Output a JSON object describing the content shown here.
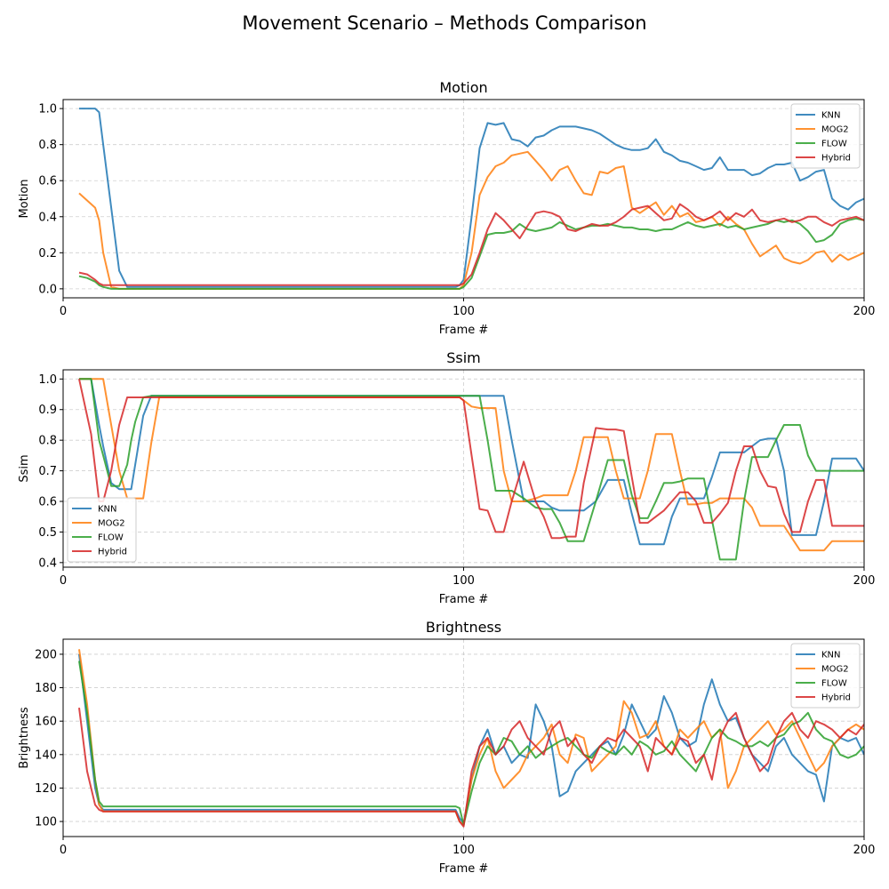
{
  "title": "Movement Scenario – Methods Comparison",
  "colors": {
    "KNN": "#1f77b4",
    "MOG2": "#ff7f0e",
    "FLOW": "#2ca02c",
    "Hybrid": "#d62728"
  },
  "chart_data": [
    {
      "type": "line",
      "title": "Motion",
      "xlabel": "Frame #",
      "ylabel": "Motion",
      "xlim": [
        0,
        200
      ],
      "ylim": [
        -0.05,
        1.05
      ],
      "xticks": [
        "0",
        "100",
        "200"
      ],
      "yticks": [
        "0.0",
        "0.2",
        "0.4",
        "0.6",
        "0.8",
        "1.0"
      ],
      "grid": true,
      "legend": "upper right",
      "x": [
        4,
        6,
        8,
        9,
        10,
        12,
        14,
        16,
        20,
        30,
        40,
        50,
        60,
        70,
        80,
        90,
        96,
        98,
        99,
        100,
        102,
        104,
        106,
        108,
        110,
        112,
        114,
        116,
        118,
        120,
        122,
        124,
        126,
        128,
        130,
        132,
        134,
        136,
        138,
        140,
        142,
        144,
        146,
        148,
        150,
        152,
        154,
        156,
        158,
        160,
        162,
        164,
        166,
        168,
        170,
        172,
        174,
        176,
        178,
        180,
        182,
        184,
        186,
        188,
        190,
        192,
        194,
        196,
        198,
        200
      ],
      "series": [
        {
          "name": "KNN",
          "values": [
            1.0,
            1.0,
            1.0,
            0.98,
            0.8,
            0.45,
            0.1,
            0.01,
            0.01,
            0.01,
            0.01,
            0.01,
            0.01,
            0.01,
            0.01,
            0.01,
            0.01,
            0.01,
            0.02,
            0.05,
            0.4,
            0.78,
            0.92,
            0.91,
            0.92,
            0.83,
            0.82,
            0.79,
            0.84,
            0.85,
            0.88,
            0.9,
            0.9,
            0.9,
            0.89,
            0.88,
            0.86,
            0.83,
            0.8,
            0.78,
            0.77,
            0.77,
            0.78,
            0.83,
            0.76,
            0.74,
            0.71,
            0.7,
            0.68,
            0.66,
            0.67,
            0.73,
            0.66,
            0.66,
            0.66,
            0.63,
            0.64,
            0.67,
            0.69,
            0.69,
            0.7,
            0.6,
            0.62,
            0.65,
            0.66,
            0.5,
            0.46,
            0.44,
            0.48,
            0.5
          ]
        },
        {
          "name": "MOG2",
          "values": [
            0.53,
            0.49,
            0.45,
            0.38,
            0.2,
            0.01,
            0.0,
            0.0,
            0.0,
            0.0,
            0.0,
            0.0,
            0.0,
            0.0,
            0.0,
            0.0,
            0.0,
            0.0,
            0.0,
            0.02,
            0.2,
            0.52,
            0.62,
            0.68,
            0.7,
            0.74,
            0.75,
            0.76,
            0.71,
            0.66,
            0.6,
            0.66,
            0.68,
            0.6,
            0.53,
            0.52,
            0.65,
            0.64,
            0.67,
            0.68,
            0.45,
            0.42,
            0.45,
            0.48,
            0.41,
            0.46,
            0.4,
            0.42,
            0.37,
            0.38,
            0.4,
            0.35,
            0.4,
            0.36,
            0.33,
            0.25,
            0.18,
            0.21,
            0.24,
            0.17,
            0.15,
            0.14,
            0.16,
            0.2,
            0.21,
            0.15,
            0.19,
            0.16,
            0.18,
            0.2
          ]
        },
        {
          "name": "FLOW",
          "values": [
            0.07,
            0.06,
            0.04,
            0.02,
            0.01,
            0.0,
            0.0,
            0.0,
            0.0,
            0.0,
            0.0,
            0.0,
            0.0,
            0.0,
            0.0,
            0.0,
            0.0,
            0.0,
            0.0,
            0.01,
            0.06,
            0.18,
            0.3,
            0.31,
            0.31,
            0.32,
            0.36,
            0.33,
            0.32,
            0.33,
            0.34,
            0.37,
            0.35,
            0.33,
            0.34,
            0.35,
            0.35,
            0.36,
            0.35,
            0.34,
            0.34,
            0.33,
            0.33,
            0.32,
            0.33,
            0.33,
            0.35,
            0.37,
            0.35,
            0.34,
            0.35,
            0.36,
            0.34,
            0.35,
            0.33,
            0.34,
            0.35,
            0.36,
            0.38,
            0.37,
            0.38,
            0.36,
            0.32,
            0.26,
            0.27,
            0.3,
            0.36,
            0.38,
            0.39,
            0.38
          ]
        },
        {
          "name": "Hybrid",
          "values": [
            0.09,
            0.08,
            0.05,
            0.03,
            0.02,
            0.02,
            0.02,
            0.02,
            0.02,
            0.02,
            0.02,
            0.02,
            0.02,
            0.02,
            0.02,
            0.02,
            0.02,
            0.02,
            0.02,
            0.03,
            0.08,
            0.2,
            0.33,
            0.42,
            0.38,
            0.33,
            0.28,
            0.35,
            0.42,
            0.43,
            0.42,
            0.4,
            0.33,
            0.32,
            0.34,
            0.36,
            0.35,
            0.35,
            0.37,
            0.4,
            0.44,
            0.45,
            0.46,
            0.42,
            0.38,
            0.39,
            0.47,
            0.44,
            0.4,
            0.38,
            0.4,
            0.43,
            0.38,
            0.42,
            0.4,
            0.44,
            0.38,
            0.37,
            0.38,
            0.39,
            0.37,
            0.38,
            0.4,
            0.4,
            0.37,
            0.35,
            0.38,
            0.39,
            0.4,
            0.38
          ]
        }
      ]
    },
    {
      "type": "line",
      "title": "Ssim",
      "xlabel": "Frame #",
      "ylabel": "Ssim",
      "xlim": [
        0,
        200
      ],
      "ylim": [
        0.385,
        1.03
      ],
      "xticks": [
        "0",
        "100",
        "200"
      ],
      "yticks": [
        "0.4",
        "0.5",
        "0.6",
        "0.7",
        "0.8",
        "0.9",
        "1.0"
      ],
      "grid": true,
      "legend": "lower left",
      "x": [
        4,
        7,
        9,
        10,
        12,
        14,
        16,
        17,
        18,
        20,
        22,
        24,
        26,
        30,
        40,
        50,
        60,
        70,
        80,
        90,
        99,
        100,
        102,
        104,
        106,
        108,
        110,
        112,
        115,
        118,
        120,
        122,
        124,
        126,
        128,
        130,
        133,
        136,
        138,
        140,
        142,
        144,
        146,
        148,
        150,
        152,
        154,
        156,
        158,
        160,
        162,
        164,
        166,
        168,
        170,
        172,
        174,
        176,
        178,
        180,
        182,
        184,
        186,
        188,
        190,
        192,
        194,
        196,
        198,
        200
      ],
      "series": [
        {
          "name": "KNN",
          "values": [
            1.0,
            1.0,
            0.85,
            0.78,
            0.66,
            0.64,
            0.64,
            0.64,
            0.72,
            0.88,
            0.945,
            0.945,
            0.945,
            0.945,
            0.945,
            0.945,
            0.945,
            0.945,
            0.945,
            0.945,
            0.945,
            0.945,
            0.945,
            0.945,
            0.945,
            0.945,
            0.945,
            0.8,
            0.6,
            0.6,
            0.6,
            0.58,
            0.57,
            0.57,
            0.57,
            0.57,
            0.6,
            0.67,
            0.67,
            0.67,
            0.56,
            0.46,
            0.46,
            0.46,
            0.46,
            0.55,
            0.61,
            0.61,
            0.61,
            0.61,
            0.68,
            0.76,
            0.76,
            0.76,
            0.76,
            0.78,
            0.8,
            0.805,
            0.805,
            0.7,
            0.49,
            0.49,
            0.49,
            0.49,
            0.6,
            0.74,
            0.74,
            0.74,
            0.74,
            0.7
          ]
        },
        {
          "name": "MOG2",
          "values": [
            1.0,
            1.0,
            1.0,
            1.0,
            0.85,
            0.7,
            0.61,
            0.61,
            0.61,
            0.61,
            0.79,
            0.94,
            0.94,
            0.94,
            0.94,
            0.94,
            0.94,
            0.94,
            0.94,
            0.94,
            0.94,
            0.93,
            0.91,
            0.905,
            0.905,
            0.905,
            0.7,
            0.6,
            0.6,
            0.61,
            0.62,
            0.62,
            0.62,
            0.62,
            0.7,
            0.81,
            0.81,
            0.81,
            0.7,
            0.61,
            0.61,
            0.61,
            0.7,
            0.82,
            0.82,
            0.82,
            0.7,
            0.59,
            0.59,
            0.595,
            0.595,
            0.61,
            0.61,
            0.61,
            0.61,
            0.58,
            0.52,
            0.52,
            0.52,
            0.52,
            0.48,
            0.44,
            0.44,
            0.44,
            0.44,
            0.47,
            0.47,
            0.47,
            0.47,
            0.47
          ]
        },
        {
          "name": "FLOW",
          "values": [
            1.0,
            1.0,
            0.8,
            0.75,
            0.65,
            0.65,
            0.72,
            0.8,
            0.86,
            0.94,
            0.945,
            0.945,
            0.945,
            0.945,
            0.945,
            0.945,
            0.945,
            0.945,
            0.945,
            0.945,
            0.945,
            0.945,
            0.945,
            0.945,
            0.8,
            0.635,
            0.635,
            0.635,
            0.61,
            0.58,
            0.575,
            0.575,
            0.53,
            0.47,
            0.47,
            0.47,
            0.6,
            0.735,
            0.735,
            0.735,
            0.62,
            0.545,
            0.545,
            0.6,
            0.66,
            0.66,
            0.665,
            0.675,
            0.675,
            0.675,
            0.54,
            0.41,
            0.41,
            0.41,
            0.6,
            0.745,
            0.745,
            0.745,
            0.8,
            0.85,
            0.85,
            0.85,
            0.75,
            0.7,
            0.7,
            0.7,
            0.7,
            0.7,
            0.7,
            0.7
          ]
        },
        {
          "name": "Hybrid",
          "values": [
            1.0,
            0.82,
            0.6,
            0.6,
            0.7,
            0.85,
            0.94,
            0.94,
            0.94,
            0.94,
            0.94,
            0.94,
            0.94,
            0.94,
            0.94,
            0.94,
            0.94,
            0.94,
            0.94,
            0.94,
            0.94,
            0.93,
            0.75,
            0.575,
            0.57,
            0.5,
            0.5,
            0.6,
            0.73,
            0.6,
            0.55,
            0.48,
            0.48,
            0.485,
            0.485,
            0.66,
            0.84,
            0.835,
            0.835,
            0.83,
            0.68,
            0.53,
            0.53,
            0.55,
            0.57,
            0.6,
            0.63,
            0.63,
            0.6,
            0.53,
            0.53,
            0.56,
            0.595,
            0.7,
            0.78,
            0.78,
            0.7,
            0.65,
            0.645,
            0.56,
            0.5,
            0.5,
            0.6,
            0.67,
            0.67,
            0.52,
            0.52,
            0.52,
            0.52,
            0.52
          ]
        }
      ]
    },
    {
      "type": "line",
      "title": "Brightness",
      "xlabel": "Frame #",
      "ylabel": "Brightness",
      "xlim": [
        0,
        200
      ],
      "ylim": [
        91,
        209
      ],
      "xticks": [
        "0",
        "100",
        "200"
      ],
      "yticks": [
        "100",
        "120",
        "140",
        "160",
        "180",
        "200"
      ],
      "grid": true,
      "legend": "upper right",
      "x": [
        4,
        6,
        8,
        9,
        10,
        12,
        14,
        20,
        30,
        40,
        50,
        60,
        70,
        80,
        90,
        98,
        99,
        100,
        102,
        104,
        106,
        108,
        110,
        112,
        114,
        116,
        118,
        120,
        122,
        124,
        126,
        128,
        130,
        132,
        134,
        136,
        138,
        140,
        142,
        144,
        146,
        148,
        150,
        152,
        154,
        156,
        158,
        160,
        162,
        164,
        166,
        168,
        170,
        172,
        174,
        176,
        178,
        180,
        182,
        184,
        186,
        188,
        190,
        192,
        194,
        196,
        198,
        200
      ],
      "series": [
        {
          "name": "KNN",
          "values": [
            200,
            160,
            120,
            110,
            107,
            107,
            107,
            107,
            107,
            107,
            107,
            107,
            107,
            107,
            107,
            107,
            102,
            99,
            125,
            145,
            155,
            140,
            145,
            135,
            140,
            138,
            170,
            160,
            145,
            115,
            118,
            130,
            135,
            140,
            145,
            148,
            140,
            152,
            170,
            160,
            150,
            155,
            175,
            165,
            150,
            145,
            148,
            170,
            185,
            170,
            160,
            162,
            150,
            140,
            135,
            130,
            145,
            150,
            140,
            135,
            130,
            128,
            112,
            145,
            150,
            148,
            150,
            140
          ]
        },
        {
          "name": "MOG2",
          "values": [
            203,
            170,
            125,
            110,
            106,
            106,
            106,
            106,
            106,
            106,
            106,
            106,
            106,
            106,
            106,
            106,
            100,
            98,
            125,
            140,
            150,
            130,
            120,
            125,
            130,
            140,
            145,
            150,
            158,
            140,
            135,
            152,
            150,
            130,
            135,
            140,
            145,
            172,
            165,
            150,
            152,
            160,
            145,
            140,
            155,
            150,
            155,
            160,
            150,
            155,
            120,
            130,
            145,
            150,
            155,
            160,
            152,
            155,
            160,
            150,
            140,
            130,
            135,
            145,
            150,
            155,
            158,
            155
          ]
        },
        {
          "name": "FLOW",
          "values": [
            196,
            165,
            125,
            112,
            109,
            109,
            109,
            109,
            109,
            109,
            109,
            109,
            109,
            109,
            109,
            109,
            108,
            98,
            118,
            135,
            145,
            140,
            150,
            148,
            140,
            145,
            138,
            142,
            145,
            148,
            150,
            145,
            140,
            138,
            145,
            142,
            140,
            145,
            140,
            148,
            145,
            140,
            142,
            148,
            140,
            135,
            130,
            140,
            150,
            155,
            150,
            148,
            145,
            145,
            148,
            145,
            150,
            152,
            158,
            160,
            165,
            155,
            150,
            148,
            140,
            138,
            140,
            145
          ]
        },
        {
          "name": "Hybrid",
          "values": [
            168,
            130,
            110,
            107,
            106,
            106,
            106,
            106,
            106,
            106,
            106,
            106,
            106,
            106,
            106,
            106,
            100,
            97,
            130,
            145,
            150,
            140,
            145,
            155,
            160,
            150,
            145,
            140,
            155,
            160,
            145,
            150,
            140,
            135,
            145,
            150,
            148,
            155,
            150,
            145,
            130,
            150,
            145,
            140,
            150,
            148,
            135,
            140,
            125,
            150,
            160,
            165,
            150,
            140,
            130,
            135,
            150,
            160,
            165,
            155,
            150,
            160,
            158,
            155,
            150,
            155,
            152,
            158
          ]
        }
      ]
    }
  ]
}
